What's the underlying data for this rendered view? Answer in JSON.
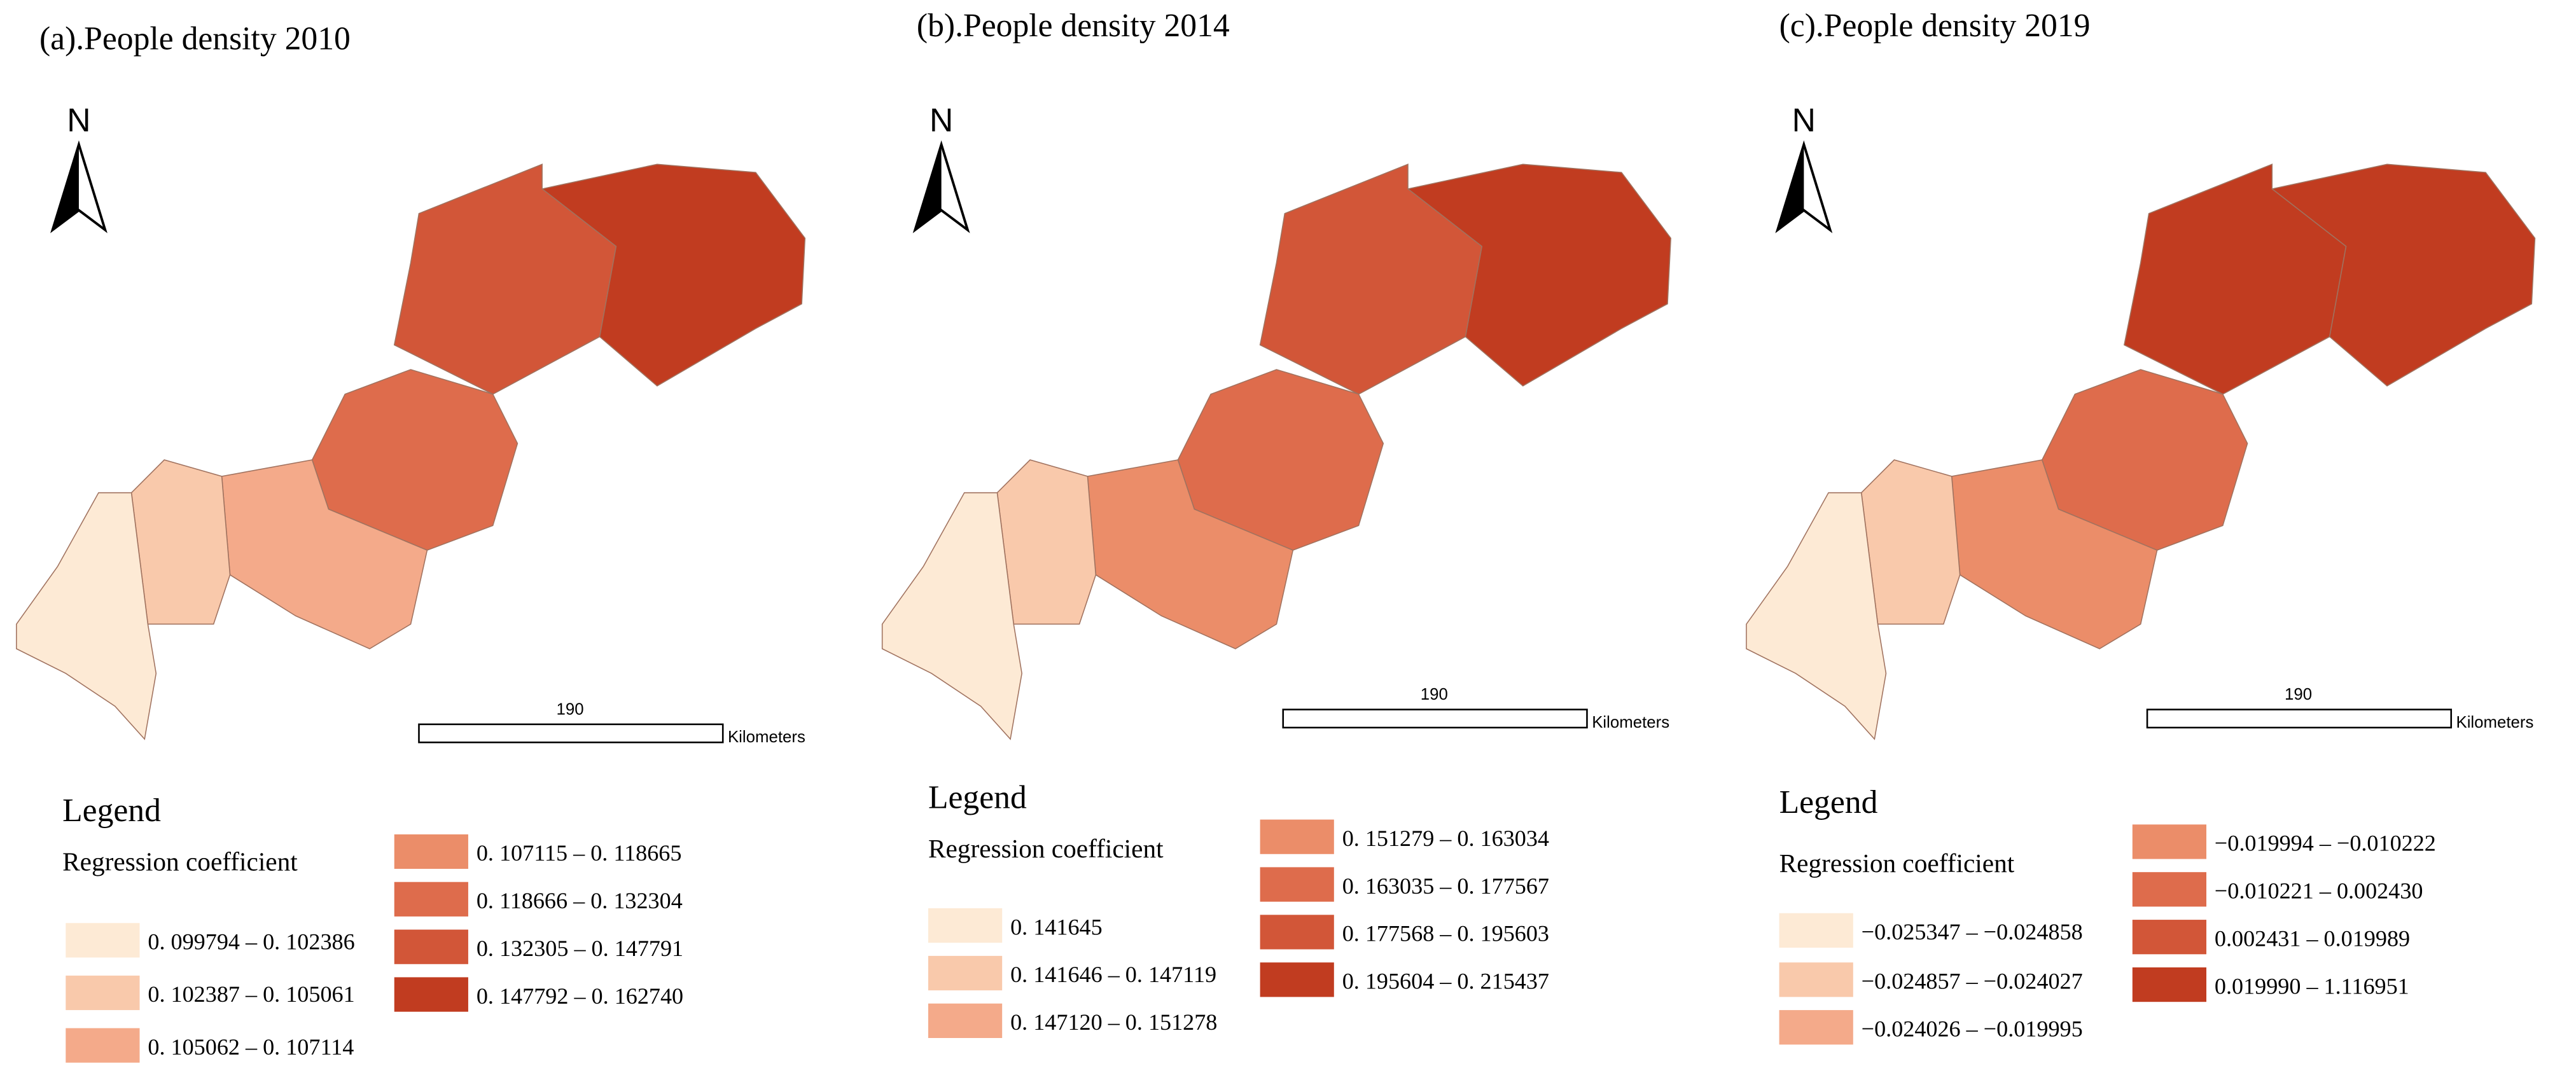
{
  "panels": [
    {
      "title": "(a).People density 2010",
      "north": "N",
      "scale_label": "190",
      "scale_unit": "Kilometers",
      "legend_title": "Legend",
      "legend_subtitle": "Regression coefficient",
      "legend": [
        {
          "label": "0. 099794 – 0. 102386",
          "color": "#fdead5"
        },
        {
          "label": "0. 102387 – 0. 105061",
          "color": "#f9c9ab"
        },
        {
          "label": "0. 105062 – 0. 107114",
          "color": "#f4aa8a"
        },
        {
          "label": "0. 107115 – 0. 118665",
          "color": "#eb8d69"
        },
        {
          "label": "0. 118666 – 0. 132304",
          "color": "#de6c4c"
        },
        {
          "label": "0. 132305 – 0. 147791",
          "color": "#d25638"
        },
        {
          "label": "0. 147792 – 0. 162740",
          "color": "#c13c20"
        }
      ]
    },
    {
      "title": "(b).People density 2014",
      "north": "N",
      "scale_label": "190",
      "scale_unit": "Kilometers",
      "legend_title": "Legend",
      "legend_subtitle": "Regression coefficient",
      "legend": [
        {
          "label": "0. 141645",
          "color": "#fdead5"
        },
        {
          "label": "0. 141646 – 0. 147119",
          "color": "#f9c9ab"
        },
        {
          "label": "0. 147120 – 0. 151278",
          "color": "#f4aa8a"
        },
        {
          "label": "0. 151279 – 0. 163034",
          "color": "#eb8d69"
        },
        {
          "label": "0. 163035 – 0. 177567",
          "color": "#de6c4c"
        },
        {
          "label": "0. 177568 – 0. 195603",
          "color": "#d25638"
        },
        {
          "label": "0. 195604 – 0. 215437",
          "color": "#c13c20"
        }
      ]
    },
    {
      "title": "(c).People density 2019",
      "north": "N",
      "scale_label": "190",
      "scale_unit": "Kilometers",
      "legend_title": "Legend",
      "legend_subtitle": "Regression coefficient",
      "legend": [
        {
          "label": "−0.025347 – −0.024858",
          "color": "#fdead5"
        },
        {
          "label": "−0.024857 – −0.024027",
          "color": "#f9c9ab"
        },
        {
          "label": "−0.024026 – −0.019995",
          "color": "#f4aa8a"
        },
        {
          "label": "−0.019994 – −0.010222",
          "color": "#eb8d69"
        },
        {
          "label": "−0.010221 – 0.002430",
          "color": "#de6c4c"
        },
        {
          "label": "0.002431 – 0.019989",
          "color": "#d25638"
        },
        {
          "label": "0.019990 – 1.116951",
          "color": "#c13c20"
        }
      ]
    }
  ]
}
